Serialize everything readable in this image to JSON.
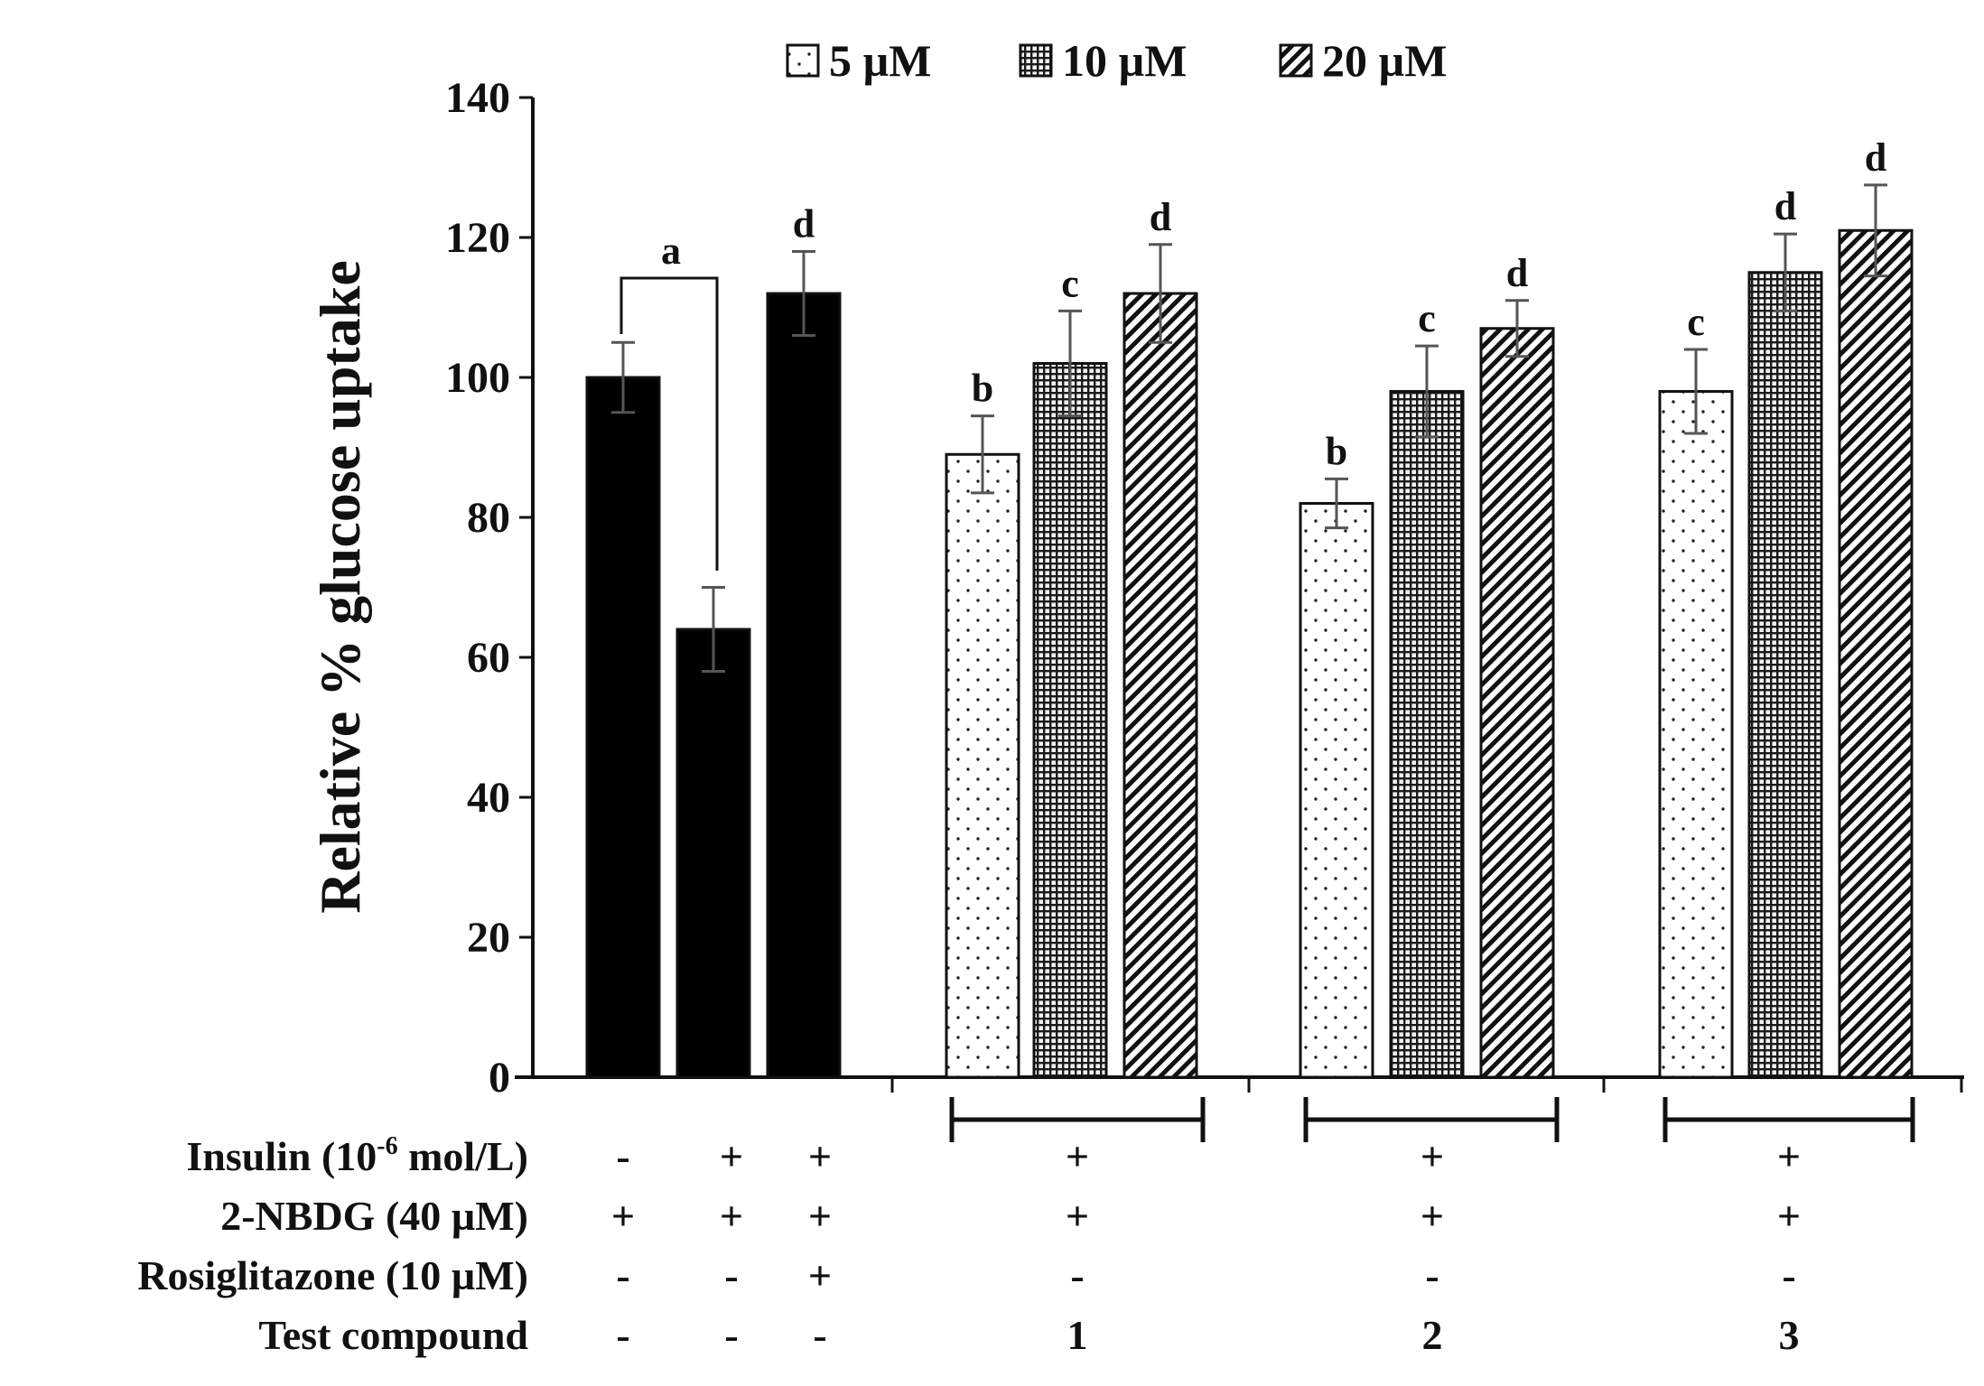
{
  "chart_data": {
    "type": "bar",
    "ylabel": "Relative % glucose uptake",
    "ylim": [
      0,
      140
    ],
    "yticks": [
      0,
      20,
      40,
      60,
      80,
      100,
      120,
      140
    ],
    "legend": {
      "position": "top",
      "items": [
        {
          "label": "5 µM",
          "pattern": "dots"
        },
        {
          "label": "10 µM",
          "pattern": "grid"
        },
        {
          "label": "20 µM",
          "pattern": "hatch"
        }
      ]
    },
    "bars": [
      {
        "value": 100,
        "error": 5,
        "pattern": "solid",
        "letter": ""
      },
      {
        "value": 64,
        "error": 6,
        "pattern": "solid",
        "letter": ""
      },
      {
        "value": 112,
        "error": 6,
        "pattern": "solid",
        "letter": "d"
      },
      {
        "value": 89,
        "error": 5.5,
        "pattern": "dots",
        "letter": "b"
      },
      {
        "value": 102,
        "error": 7.5,
        "pattern": "grid",
        "letter": "c"
      },
      {
        "value": 112,
        "error": 7,
        "pattern": "hatch",
        "letter": "d"
      },
      {
        "value": 82,
        "error": 3.5,
        "pattern": "dots",
        "letter": "b"
      },
      {
        "value": 98,
        "error": 6.5,
        "pattern": "grid",
        "letter": "c"
      },
      {
        "value": 107,
        "error": 4,
        "pattern": "hatch",
        "letter": "d"
      },
      {
        "value": 98,
        "error": 6,
        "pattern": "dots",
        "letter": "c"
      },
      {
        "value": 115,
        "error": 5.5,
        "pattern": "grid",
        "letter": "d"
      },
      {
        "value": 121,
        "error": 6.5,
        "pattern": "hatch",
        "letter": "d"
      }
    ],
    "bracket_label": "a",
    "condition_table": {
      "rows": [
        {
          "label": "Insulin (10",
          "label_sup": "-6",
          "label_tail": " mol/L)",
          "values": [
            "-",
            "+",
            "+",
            "+",
            "+",
            "+"
          ]
        },
        {
          "label": "2-NBDG (40 µM)",
          "label_sup": "",
          "label_tail": "",
          "values": [
            "+",
            "+",
            "+",
            "+",
            "+",
            "+"
          ]
        },
        {
          "label": "Rosiglitazone (10 µM)",
          "label_sup": "",
          "label_tail": "",
          "values": [
            "-",
            "-",
            "+",
            "-",
            "-",
            "-"
          ]
        },
        {
          "label": "Test compound",
          "label_sup": "",
          "label_tail": "",
          "values": [
            "-",
            "-",
            "-",
            "1",
            "2",
            "3"
          ]
        }
      ]
    }
  }
}
